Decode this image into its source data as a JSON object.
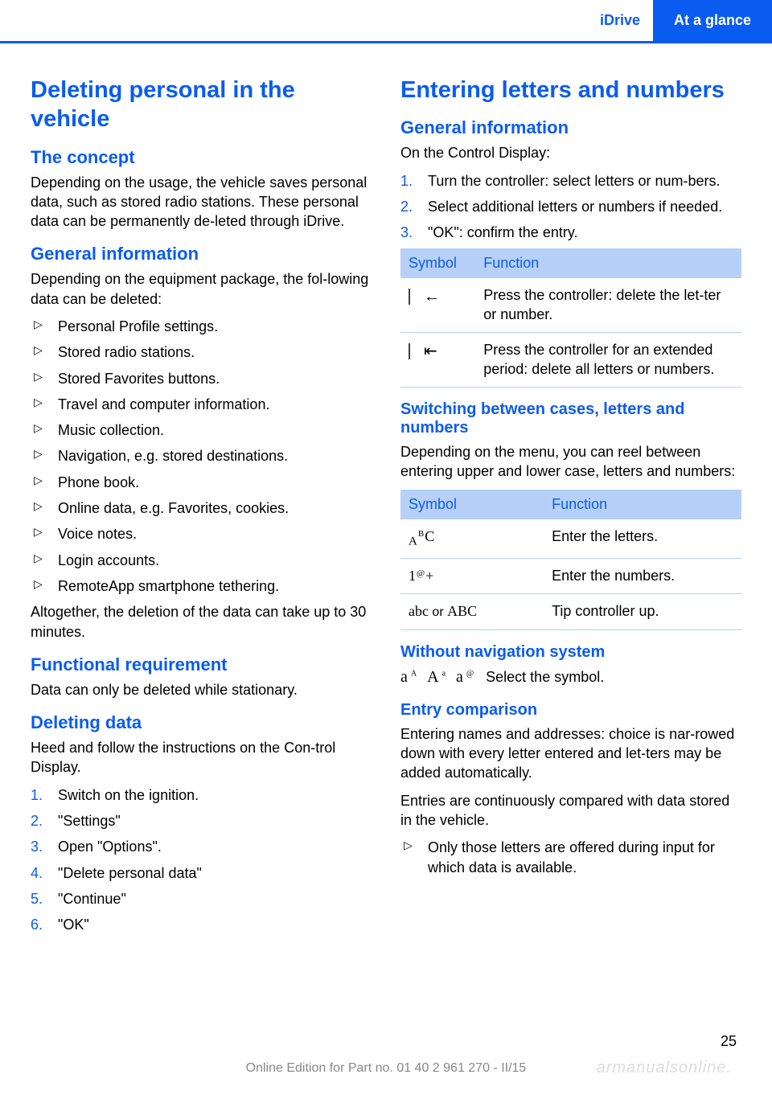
{
  "header": {
    "left": "iDrive",
    "right": "At a glance"
  },
  "left": {
    "h1": "Deleting personal in the vehicle",
    "concept_h": "The concept",
    "concept_p": "Depending on the usage, the vehicle saves personal data, such as stored radio stations. These personal data can be permanently de‐leted through iDrive.",
    "geninfo_h": "General information",
    "geninfo_p": "Depending on the equipment package, the fol‐lowing data can be deleted:",
    "bullets": [
      "Personal Profile settings.",
      "Stored radio stations.",
      "Stored Favorites buttons.",
      "Travel and computer information.",
      "Music collection.",
      "Navigation, e.g. stored destinations.",
      "Phone book.",
      "Online data, e.g. Favorites, cookies.",
      "Voice notes.",
      "Login accounts.",
      "RemoteApp smartphone tethering."
    ],
    "geninfo_p2": "Altogether, the deletion of the data can take up to 30 minutes.",
    "funcreq_h": "Functional requirement",
    "funcreq_p": "Data can only be deleted while stationary.",
    "deldata_h": "Deleting data",
    "deldata_p": "Heed and follow the instructions on the Con‐trol Display.",
    "steps": [
      "Switch on the ignition.",
      "\"Settings\"",
      "Open \"Options\".",
      "\"Delete personal data\"",
      "\"Continue\"",
      "\"OK\""
    ]
  },
  "right": {
    "h1": "Entering letters and numbers",
    "geninfo_h": "General information",
    "geninfo_p": "On the Control Display:",
    "steps": [
      "Turn the controller: select letters or num‐bers.",
      "Select additional letters or numbers if needed.",
      "\"OK\": confirm the entry."
    ],
    "t1": {
      "h1": "Symbol",
      "h2": "Function",
      "r1s": "⎸←",
      "r1f": "Press the controller: delete the let‐ter or number.",
      "r2s": "⎸⇤",
      "r2f": "Press the controller for an extended period: delete all letters or numbers."
    },
    "switch_h": "Switching between cases, letters and numbers",
    "switch_p": "Depending on the menu, you can reel between entering upper and lower case, letters and numbers:",
    "t2": {
      "h1": "Symbol",
      "h2": "Function",
      "r1f": "Enter the letters.",
      "r2f": "Enter the numbers.",
      "r3f": "Tip controller up."
    },
    "without_h": "Without navigation system",
    "without_p": "Select the symbol.",
    "entry_h": "Entry comparison",
    "entry_p1": "Entering names and addresses: choice is nar‐rowed down with every letter entered and let‐ters may be added automatically.",
    "entry_p2": "Entries are continuously compared with data stored in the vehicle.",
    "entry_b1": "Only those letters are offered during input for which data is available."
  },
  "footer": "Online Edition for Part no. 01 40 2 961 270 - II/15",
  "watermark": "armanualsonline.",
  "page": "25"
}
